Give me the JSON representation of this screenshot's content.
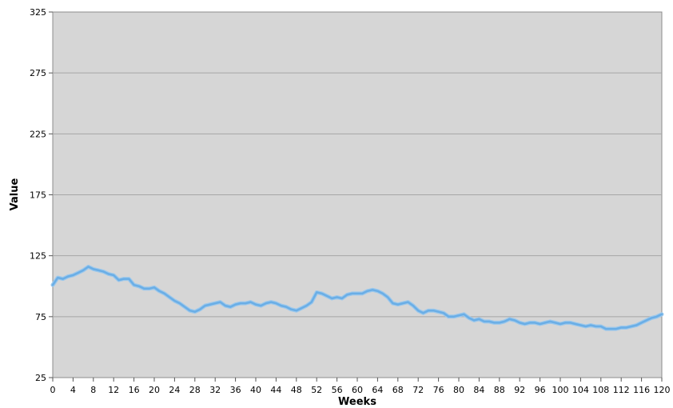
{
  "chart_data": {
    "type": "line",
    "title": "",
    "xlabel": "Weeks",
    "ylabel": "Value",
    "xlim": [
      0,
      120
    ],
    "ylim": [
      25,
      325
    ],
    "x_ticks": [
      "0",
      "4",
      "8",
      "12",
      "16",
      "20",
      "24",
      "28",
      "32",
      "36",
      "40",
      "44",
      "48",
      "52",
      "56",
      "60",
      "64",
      "68",
      "72",
      "76",
      "80",
      "84",
      "88",
      "92",
      "96",
      "100",
      "104",
      "108",
      "112",
      "116",
      "120"
    ],
    "y_ticks": [
      "25",
      "75",
      "125",
      "175",
      "225",
      "275",
      "325"
    ],
    "grid": true,
    "legend": "none",
    "colors": {
      "plot_background": "#d6d6d6",
      "gridline": "#a6a6a6",
      "line": "#6aaee6",
      "line_edge": "#9cc8ec"
    },
    "series": [
      {
        "values": [
          101,
          107,
          106,
          108,
          109,
          111,
          113,
          116,
          114,
          113,
          112,
          110,
          109,
          105,
          106,
          106,
          101,
          100,
          98,
          98,
          99,
          96,
          94,
          91,
          88,
          86,
          83,
          80,
          79,
          81,
          84,
          85,
          86,
          87,
          84,
          83,
          85,
          86,
          86,
          87,
          85,
          84,
          86,
          87,
          86,
          84,
          83,
          81,
          80,
          82,
          84,
          87,
          95,
          94,
          92,
          90,
          91,
          90,
          93,
          94,
          94,
          94,
          96,
          97,
          96,
          94,
          91,
          86,
          85,
          86,
          87,
          84,
          80,
          78,
          80,
          80,
          79,
          78,
          75,
          75,
          76,
          77,
          74,
          72,
          73,
          71,
          71,
          70,
          70,
          71,
          73,
          72,
          70,
          69,
          70,
          70,
          69,
          70,
          71,
          70,
          69,
          70,
          70,
          69,
          68,
          67,
          68,
          67,
          67,
          65,
          65,
          65,
          66,
          66,
          67,
          68,
          70,
          72,
          74,
          75,
          77
        ]
      }
    ]
  }
}
